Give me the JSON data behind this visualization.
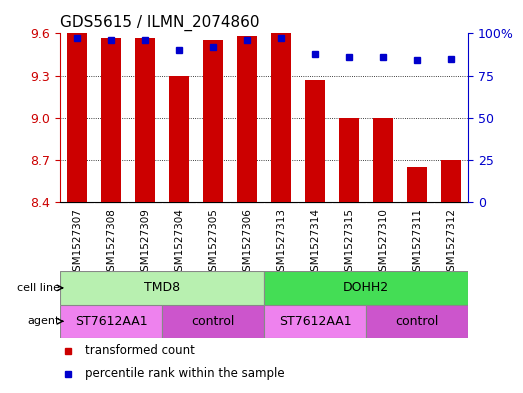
{
  "title": "GDS5615 / ILMN_2074860",
  "samples": [
    "GSM1527307",
    "GSM1527308",
    "GSM1527309",
    "GSM1527304",
    "GSM1527305",
    "GSM1527306",
    "GSM1527313",
    "GSM1527314",
    "GSM1527315",
    "GSM1527310",
    "GSM1527311",
    "GSM1527312"
  ],
  "transformed_counts": [
    9.6,
    9.57,
    9.57,
    9.3,
    9.55,
    9.58,
    9.6,
    9.27,
    9.0,
    9.0,
    8.65,
    8.7
  ],
  "percentile_ranks": [
    97,
    96,
    96,
    90,
    92,
    96,
    97,
    88,
    86,
    86,
    84,
    85
  ],
  "ymin": 8.4,
  "ymax": 9.6,
  "y_ticks": [
    8.4,
    8.7,
    9.0,
    9.3,
    9.6
  ],
  "y_right_ticks": [
    0,
    25,
    50,
    75,
    100
  ],
  "bar_color": "#cc0000",
  "dot_color": "#0000cc",
  "cell_line_groups": [
    {
      "label": "TMD8",
      "start": 0,
      "end": 5,
      "color": "#b8f0b0"
    },
    {
      "label": "DOHH2",
      "start": 6,
      "end": 11,
      "color": "#44dd55"
    }
  ],
  "agent_groups": [
    {
      "label": "ST7612AA1",
      "start": 0,
      "end": 2,
      "color": "#ee82ee"
    },
    {
      "label": "control",
      "start": 3,
      "end": 5,
      "color": "#cc55cc"
    },
    {
      "label": "ST7612AA1",
      "start": 6,
      "end": 8,
      "color": "#ee82ee"
    },
    {
      "label": "control",
      "start": 9,
      "end": 11,
      "color": "#cc55cc"
    }
  ],
  "legend_items": [
    {
      "label": "transformed count",
      "color": "#cc0000"
    },
    {
      "label": "percentile rank within the sample",
      "color": "#0000cc"
    }
  ],
  "bg_color": "#ffffff",
  "left_label_color": "#cc0000",
  "right_label_color": "#0000cc",
  "tick_area_color": "#d8d8d8",
  "cell_line_border_color": "#888888",
  "agent_border_color": "#888888"
}
